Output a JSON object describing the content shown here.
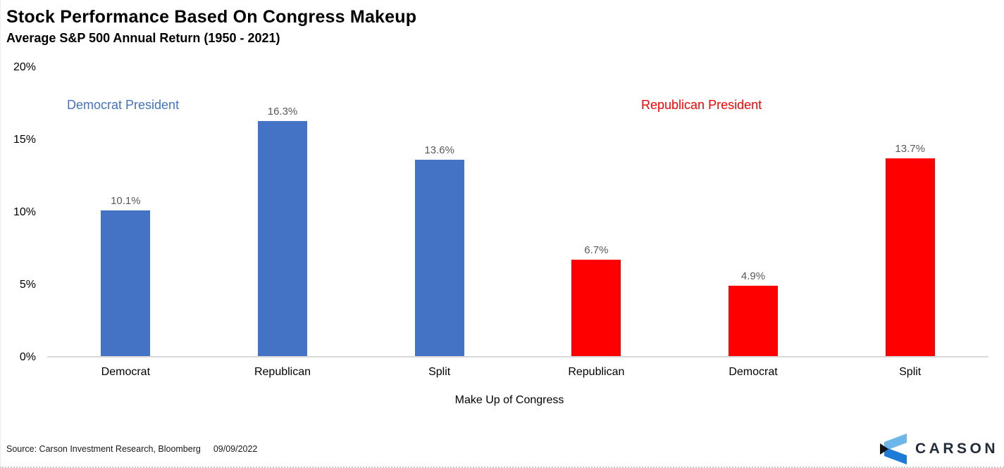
{
  "chart_data": {
    "type": "bar",
    "title": "Stock Performance Based On Congress Makeup",
    "subtitle": "Average S&P 500 Annual Return (1950 - 2021)",
    "categories": [
      "Democrat",
      "Republican",
      "Split",
      "Republican",
      "Democrat",
      "Split"
    ],
    "values": [
      10.1,
      16.3,
      13.6,
      6.7,
      4.9,
      13.7
    ],
    "value_labels": [
      "10.1%",
      "16.3%",
      "13.6%",
      "6.7%",
      "4.9%",
      "13.7%"
    ],
    "bar_colors": [
      "#4472C4",
      "#4472C4",
      "#4472C4",
      "#FF0000",
      "#FF0000",
      "#FF0000"
    ],
    "series": [
      {
        "name": "Democrat President",
        "color": "#4472C4",
        "categories": [
          "Democrat",
          "Republican",
          "Split"
        ],
        "values": [
          10.1,
          16.3,
          13.6
        ]
      },
      {
        "name": "Republican President",
        "color": "#FF0000",
        "categories": [
          "Republican",
          "Democrat",
          "Split"
        ],
        "values": [
          6.7,
          4.9,
          13.7
        ]
      }
    ],
    "annotations": [
      {
        "text": "Democrat President",
        "color": "#4472C4"
      },
      {
        "text": "Republican President",
        "color": "#FF0000"
      }
    ],
    "xlabel": "Make Up of Congress",
    "ylabel": "",
    "ylim": [
      0,
      20
    ],
    "yticks": [
      "0%",
      "5%",
      "10%",
      "15%",
      "20%"
    ],
    "grid": false,
    "legend_position": "none",
    "axis_line_color": "#D9D9D9",
    "value_label_color": "#595959"
  },
  "footer": {
    "source": "Source: Carson Investment Research, Bloomberg",
    "date": "09/09/2022",
    "logo_text": "CARSON"
  }
}
